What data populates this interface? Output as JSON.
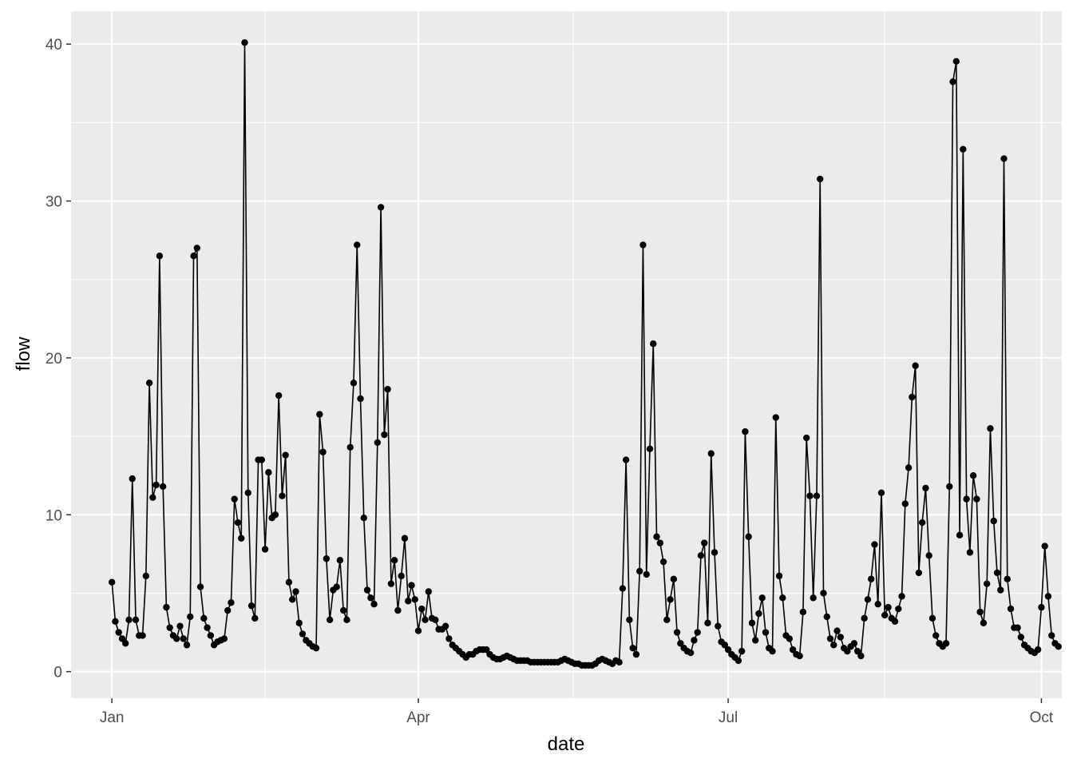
{
  "chart_data": {
    "type": "line",
    "xlabel": "date",
    "ylabel": "flow",
    "x_ticks": [
      {
        "date": "2022-01-01",
        "label": "Jan"
      },
      {
        "date": "2022-04-01",
        "label": "Apr"
      },
      {
        "date": "2022-07-01",
        "label": "Jul"
      },
      {
        "date": "2022-10-01",
        "label": "Oct"
      }
    ],
    "y_ticks": [
      0,
      10,
      20,
      30,
      40
    ],
    "xlim": [
      "2021-12-20",
      "2022-10-07"
    ],
    "ylim": [
      -1.7,
      42.1
    ],
    "grid": true,
    "markers": true,
    "colors": {
      "panel": "#ebebeb",
      "grid_major": "#ffffff",
      "line": "#000000"
    },
    "start_date": "2022-01-01",
    "values": [
      5.7,
      3.2,
      2.5,
      2.1,
      1.8,
      3.3,
      12.3,
      3.3,
      2.3,
      2.3,
      6.1,
      18.4,
      11.1,
      11.9,
      26.5,
      11.8,
      4.1,
      2.8,
      2.3,
      2.1,
      2.9,
      2.1,
      1.7,
      3.5,
      26.5,
      27.0,
      5.4,
      3.4,
      2.8,
      2.3,
      1.7,
      1.9,
      2.0,
      2.1,
      3.9,
      4.4,
      11.0,
      9.5,
      8.5,
      40.1,
      11.4,
      4.2,
      3.4,
      13.5,
      13.5,
      7.8,
      12.7,
      9.8,
      10.0,
      17.6,
      11.2,
      13.8,
      5.7,
      4.6,
      5.1,
      3.1,
      2.4,
      2.0,
      1.8,
      1.6,
      1.5,
      16.4,
      14.0,
      7.2,
      3.3,
      5.2,
      5.4,
      7.1,
      3.9,
      3.3,
      14.3,
      18.4,
      27.2,
      17.4,
      9.8,
      5.2,
      4.7,
      4.3,
      14.6,
      29.6,
      15.1,
      18.0,
      5.6,
      7.1,
      3.9,
      6.1,
      8.5,
      4.5,
      5.5,
      4.6,
      2.6,
      4.0,
      3.3,
      5.1,
      3.4,
      3.3,
      2.7,
      2.7,
      2.9,
      2.1,
      1.7,
      1.5,
      1.3,
      1.1,
      0.9,
      1.1,
      1.1,
      1.3,
      1.4,
      1.4,
      1.4,
      1.1,
      0.9,
      0.8,
      0.8,
      0.9,
      1.0,
      0.9,
      0.8,
      0.7,
      0.7,
      0.7,
      0.7,
      0.6,
      0.6,
      0.6,
      0.6,
      0.6,
      0.6,
      0.6,
      0.6,
      0.6,
      0.7,
      0.8,
      0.7,
      0.6,
      0.5,
      0.5,
      0.4,
      0.4,
      0.4,
      0.4,
      0.5,
      0.7,
      0.8,
      0.7,
      0.6,
      0.5,
      0.7,
      0.6,
      5.3,
      13.5,
      3.3,
      1.5,
      1.1,
      6.4,
      27.2,
      6.2,
      14.2,
      20.9,
      8.6,
      8.2,
      7.0,
      3.3,
      4.6,
      5.9,
      2.5,
      1.8,
      1.5,
      1.3,
      1.2,
      2.0,
      2.5,
      7.4,
      8.2,
      3.1,
      13.9,
      7.6,
      2.9,
      1.9,
      1.7,
      1.4,
      1.1,
      0.9,
      0.7,
      1.3,
      15.3,
      8.6,
      3.1,
      2.0,
      3.7,
      4.7,
      2.5,
      1.5,
      1.3,
      16.2,
      6.1,
      4.7,
      2.3,
      2.1,
      1.4,
      1.1,
      1.0,
      3.8,
      14.9,
      11.2,
      4.7,
      11.2,
      31.4,
      5.0,
      3.5,
      2.1,
      1.7,
      2.6,
      2.2,
      1.5,
      1.3,
      1.6,
      1.8,
      1.3,
      1.0,
      3.4,
      4.6,
      5.9,
      8.1,
      4.3,
      11.4,
      3.6,
      4.1,
      3.4,
      3.2,
      4.0,
      4.8,
      10.7,
      13.0,
      17.5,
      19.5,
      6.3,
      9.5,
      11.7,
      7.4,
      3.4,
      2.3,
      1.8,
      1.6,
      1.8,
      11.8,
      37.6,
      38.9,
      8.7,
      33.3,
      11.0,
      7.6,
      12.5,
      11.0,
      3.8,
      3.1,
      5.6,
      15.5,
      9.6,
      6.3,
      5.2,
      32.7,
      5.9,
      4.0,
      2.8,
      2.8,
      2.2,
      1.7,
      1.5,
      1.3,
      1.2,
      1.4,
      4.1,
      8.0,
      4.8,
      2.3,
      1.8,
      1.6
    ]
  }
}
